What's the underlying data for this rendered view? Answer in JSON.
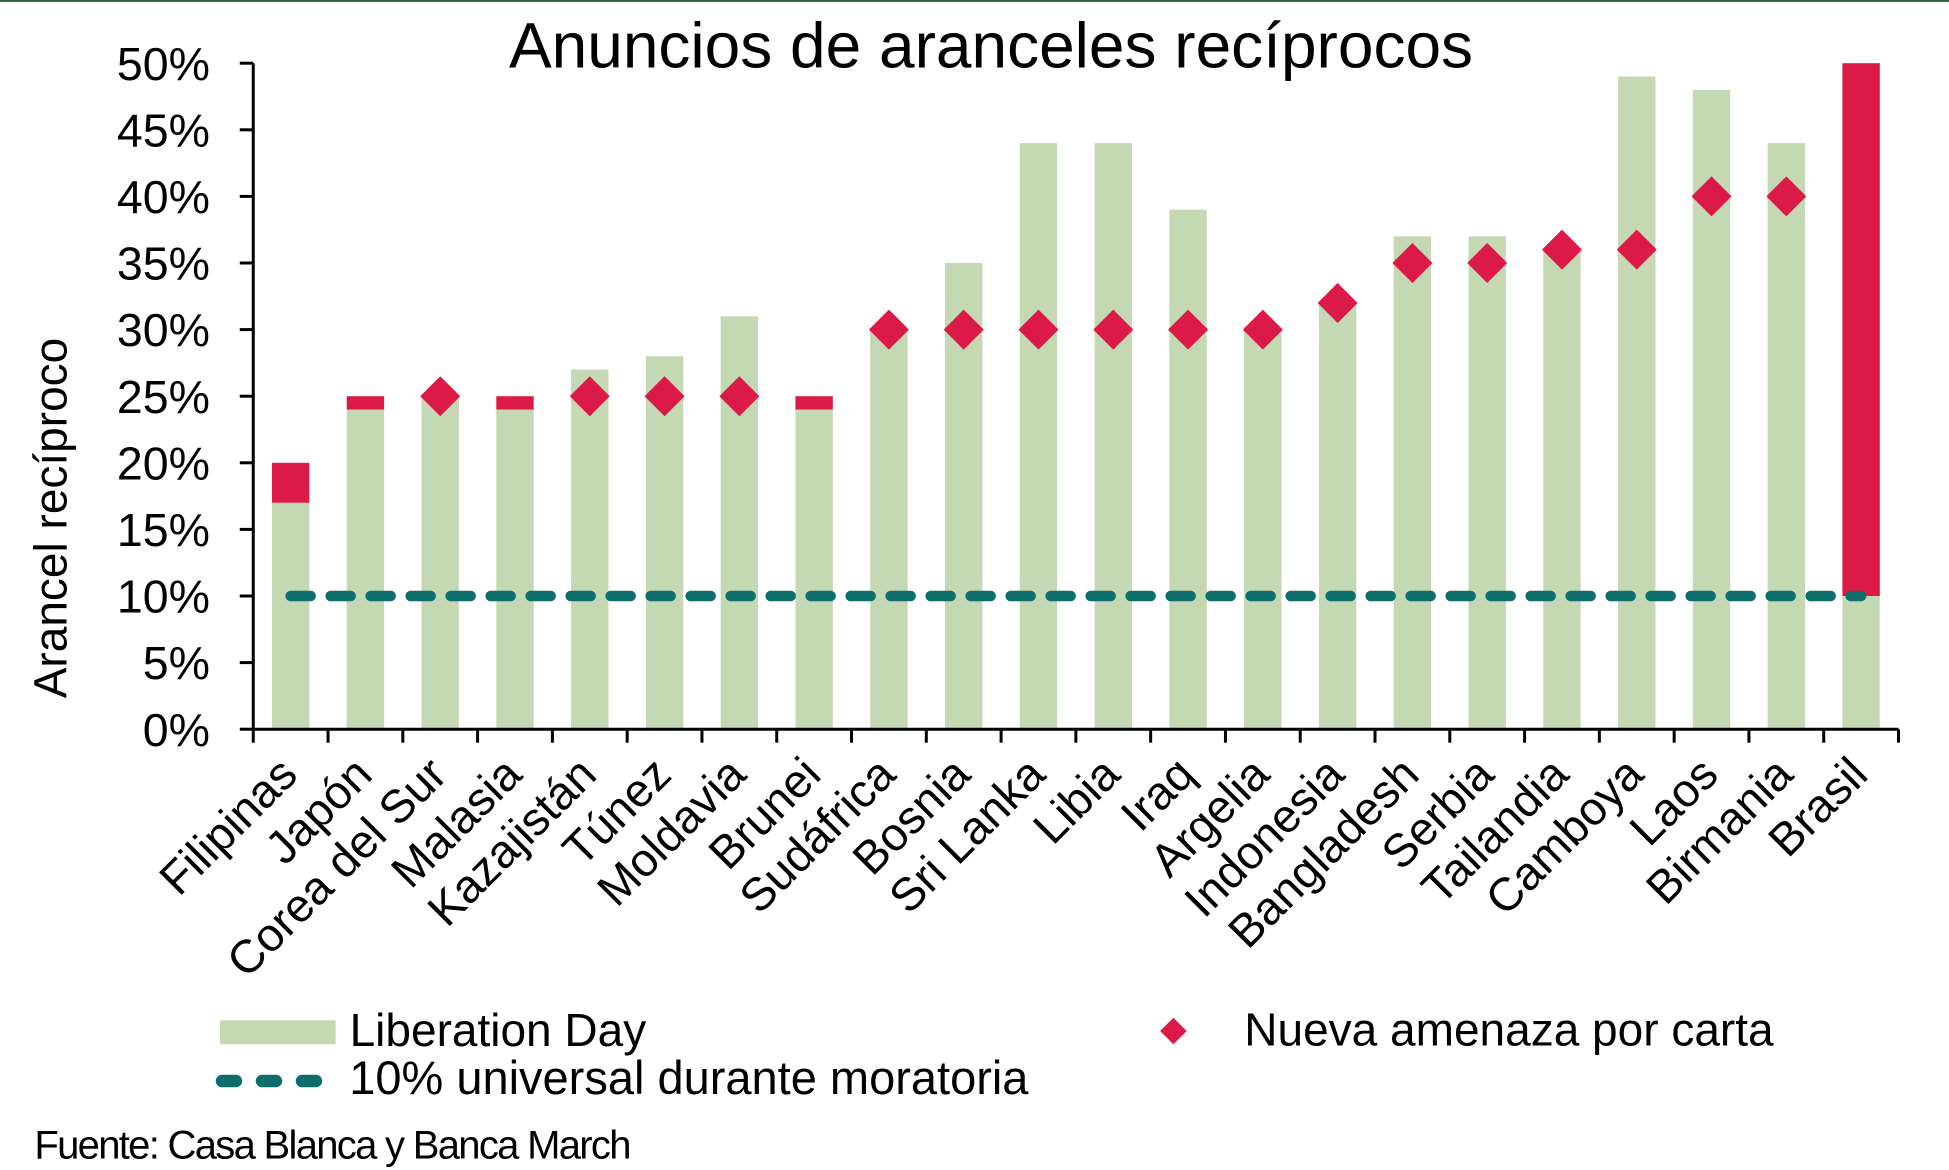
{
  "page": {
    "background_color": "#FFFFFF",
    "top_accent_color": "#38693C",
    "text_color": "#000000"
  },
  "chart_data": {
    "type": "bar",
    "title": "Anuncios de aranceles recíprocos",
    "ylabel": "Arancel recíproco",
    "xlabel": "",
    "ylim": [
      0,
      50
    ],
    "ytick_step": 5,
    "ytick_suffix": "%",
    "ytick_labels": [
      "0%",
      "5%",
      "10%",
      "15%",
      "20%",
      "25%",
      "30%",
      "35%",
      "40%",
      "45%",
      "50%"
    ],
    "grid": false,
    "legend_position": "bottom",
    "categories": [
      "Filipinas",
      "Japón",
      "Corea del Sur",
      "Malasia",
      "Kazajistán",
      "Túnez",
      "Moldavia",
      "Brunei",
      "Sudáfrica",
      "Bosnia",
      "Sri Lanka",
      "Libia",
      "Iraq",
      "Argelia",
      "Indonesia",
      "Bangladesh",
      "Serbia",
      "Tailandia",
      "Camboya",
      "Laos",
      "Birmania",
      "Brasil"
    ],
    "series": [
      {
        "name": "Liberation Day",
        "type": "bar",
        "color": "#C5D8B4",
        "values": [
          17,
          24,
          25,
          24,
          27,
          28,
          31,
          24,
          30,
          35,
          44,
          44,
          39,
          30,
          32,
          37,
          37,
          36,
          49,
          48,
          44,
          10
        ]
      },
      {
        "name": "Nueva amenaza por carta",
        "type": "diamond-marker-or-bar-extension",
        "color": "#DC1A48",
        "values": [
          20,
          25,
          25,
          25,
          25,
          25,
          25,
          25,
          30,
          30,
          30,
          30,
          30,
          30,
          32,
          35,
          35,
          36,
          36,
          40,
          40,
          50
        ]
      },
      {
        "name": "10% universal durante moratoria",
        "type": "dashed-line",
        "color": "#0E6E6C",
        "value": 10
      }
    ],
    "source": "Fuente: Casa Blanca y Banca March"
  }
}
